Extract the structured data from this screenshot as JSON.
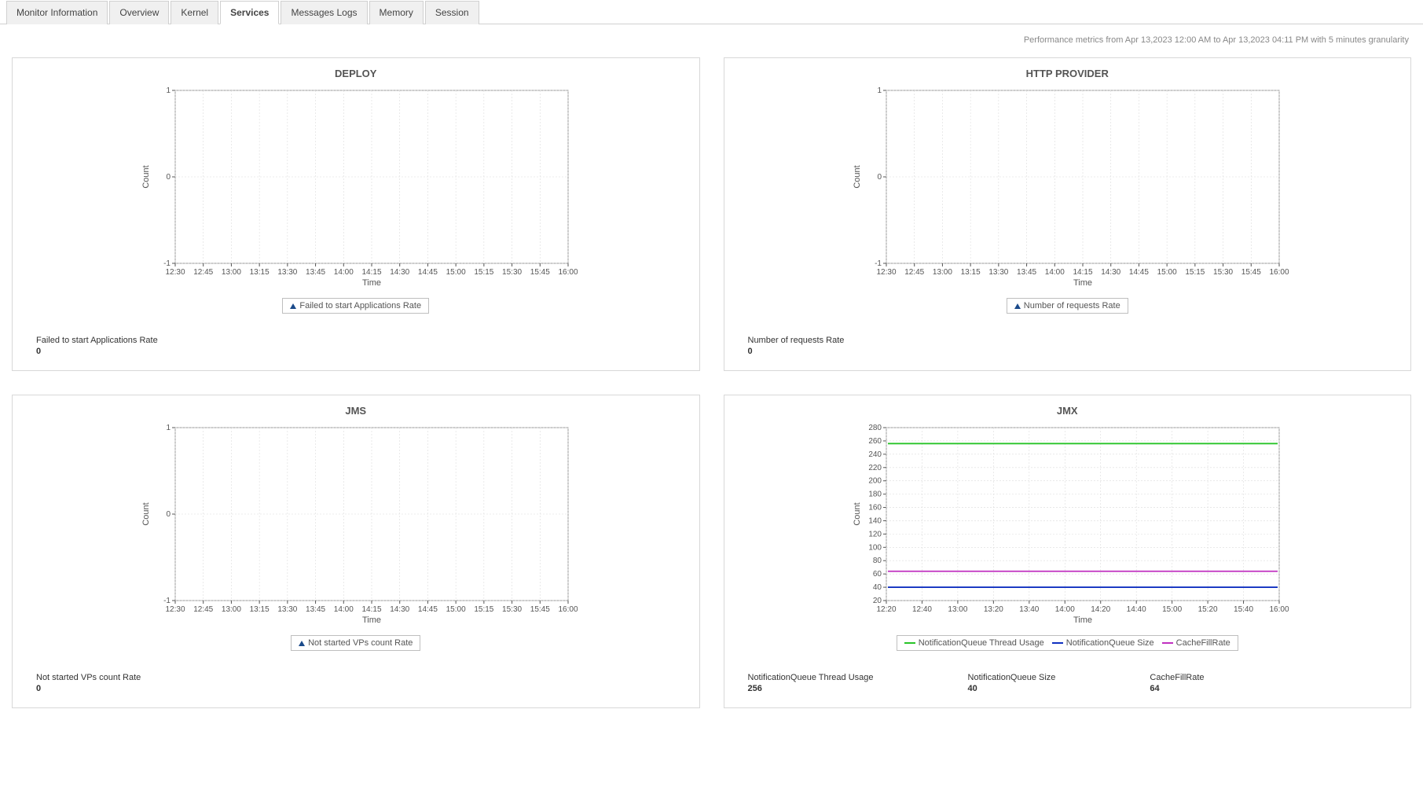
{
  "tabs": [
    {
      "id": "monitor-information",
      "label": "Monitor Information",
      "active": false
    },
    {
      "id": "overview",
      "label": "Overview",
      "active": false
    },
    {
      "id": "kernel",
      "label": "Kernel",
      "active": false
    },
    {
      "id": "services",
      "label": "Services",
      "active": true
    },
    {
      "id": "messages-logs",
      "label": "Messages Logs",
      "active": false
    },
    {
      "id": "memory",
      "label": "Memory",
      "active": false
    },
    {
      "id": "session",
      "label": "Session",
      "active": false
    }
  ],
  "perf_info": "Performance metrics from Apr 13,2023 12:00 AM to Apr 13,2023 04:11 PM with 5 minutes granularity",
  "charts": {
    "deploy": {
      "title": "DEPLOY",
      "type": "line",
      "x_label": "Time",
      "y_label": "Count",
      "x_ticks": [
        "12:30",
        "12:45",
        "13:00",
        "13:15",
        "13:30",
        "13:45",
        "14:00",
        "14:15",
        "14:30",
        "14:45",
        "15:00",
        "15:15",
        "15:30",
        "15:45",
        "16:00"
      ],
      "y_ticks": [
        "-1",
        "0",
        "1"
      ],
      "ylim": [
        -1,
        1
      ],
      "grid_color": "#dcdcdc",
      "border_color": "#9a9a9a",
      "series": [
        {
          "name": "Failed to start Applications Rate",
          "marker": "triangle",
          "color": "#1a4a8a"
        }
      ],
      "metrics": [
        {
          "label": "Failed to start Applications Rate",
          "value": "0"
        }
      ]
    },
    "http": {
      "title": "HTTP PROVIDER",
      "type": "line",
      "x_label": "Time",
      "y_label": "Count",
      "x_ticks": [
        "12:30",
        "12:45",
        "13:00",
        "13:15",
        "13:30",
        "13:45",
        "14:00",
        "14:15",
        "14:30",
        "14:45",
        "15:00",
        "15:15",
        "15:30",
        "15:45",
        "16:00"
      ],
      "y_ticks": [
        "-1",
        "0",
        "1"
      ],
      "ylim": [
        -1,
        1
      ],
      "grid_color": "#dcdcdc",
      "border_color": "#9a9a9a",
      "series": [
        {
          "name": "Number of requests Rate",
          "marker": "triangle",
          "color": "#1a4a8a"
        }
      ],
      "metrics": [
        {
          "label": "Number of requests Rate",
          "value": "0"
        }
      ]
    },
    "jms": {
      "title": "JMS",
      "type": "line",
      "x_label": "Time",
      "y_label": "Count",
      "x_ticks": [
        "12:30",
        "12:45",
        "13:00",
        "13:15",
        "13:30",
        "13:45",
        "14:00",
        "14:15",
        "14:30",
        "14:45",
        "15:00",
        "15:15",
        "15:30",
        "15:45",
        "16:00"
      ],
      "y_ticks": [
        "-1",
        "0",
        "1"
      ],
      "ylim": [
        -1,
        1
      ],
      "grid_color": "#dcdcdc",
      "border_color": "#9a9a9a",
      "series": [
        {
          "name": "Not started VPs count Rate",
          "marker": "triangle",
          "color": "#1a4a8a"
        }
      ],
      "metrics": [
        {
          "label": "Not started VPs count Rate",
          "value": "0"
        }
      ]
    },
    "jmx": {
      "title": "JMX",
      "type": "line",
      "x_label": "Time",
      "y_label": "Count",
      "x_ticks": [
        "12:20",
        "12:40",
        "13:00",
        "13:20",
        "13:40",
        "14:00",
        "14:20",
        "14:40",
        "15:00",
        "15:20",
        "15:40",
        "16:00"
      ],
      "y_ticks": [
        "20",
        "40",
        "60",
        "80",
        "100",
        "120",
        "140",
        "160",
        "180",
        "200",
        "220",
        "240",
        "260",
        "280"
      ],
      "ylim": [
        20,
        280
      ],
      "grid_color": "#dcdcdc",
      "border_color": "#9a9a9a",
      "series": [
        {
          "name": "NotificationQueue Thread Usage",
          "color": "#28c428",
          "value": 256
        },
        {
          "name": "NotificationQueue Size",
          "color": "#1030c0",
          "value": 40
        },
        {
          "name": "CacheFillRate",
          "color": "#c030c0",
          "value": 64
        }
      ],
      "metrics": [
        {
          "label": "NotificationQueue Thread Usage",
          "value": "256"
        },
        {
          "label": "NotificationQueue Size",
          "value": "40"
        },
        {
          "label": "CacheFillRate",
          "value": "64"
        }
      ]
    }
  }
}
